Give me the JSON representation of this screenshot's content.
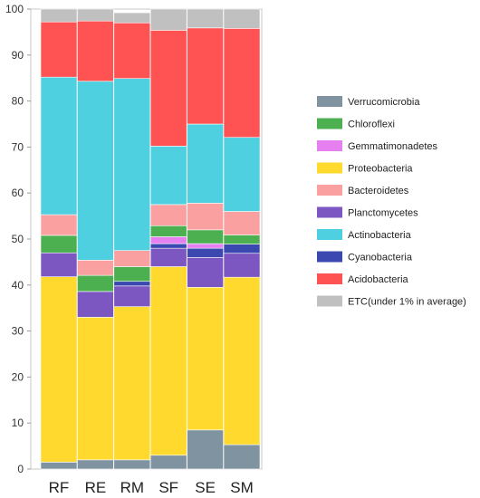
{
  "chart_data": {
    "type": "bar",
    "stacked": true,
    "categories": [
      "RF",
      "RE",
      "RM",
      "SF",
      "SE",
      "SM"
    ],
    "ylim": [
      0,
      100
    ],
    "yticks": [
      0,
      10,
      20,
      30,
      40,
      50,
      60,
      70,
      80,
      90,
      100
    ],
    "grid": false,
    "legend_position": "right",
    "series": [
      {
        "name": "Verrucomicrobia",
        "color": "#7F93A0",
        "values": [
          1.5,
          2.0,
          2.0,
          3.0,
          8.5,
          5.3
        ]
      },
      {
        "name": "Proteobacteria",
        "color": "#FFD92E",
        "values": [
          40.3,
          31.0,
          33.3,
          41.0,
          31.0,
          36.4
        ]
      },
      {
        "name": "Planctomycetes",
        "color": "#7C56C1",
        "values": [
          5.2,
          5.6,
          4.5,
          4.0,
          6.5,
          5.2
        ]
      },
      {
        "name": "Cyanobacteria",
        "color": "#3A48B0",
        "values": [
          0.0,
          0.0,
          1.0,
          1.0,
          2.0,
          2.0
        ]
      },
      {
        "name": "Gemmatimonadetes",
        "color": "#E67FF0",
        "values": [
          0.0,
          0.0,
          0.0,
          1.5,
          1.0,
          0.0
        ]
      },
      {
        "name": "Chloroflexi",
        "color": "#4CAF50",
        "values": [
          3.8,
          3.5,
          3.2,
          2.4,
          3.0,
          2.0
        ]
      },
      {
        "name": "Bacteroidetes",
        "color": "#FBA0A0",
        "values": [
          4.5,
          3.3,
          3.5,
          4.6,
          5.8,
          5.1
        ]
      },
      {
        "name": "Actinobacteria",
        "color": "#4FD0E0",
        "values": [
          29.9,
          38.9,
          37.4,
          12.7,
          17.2,
          16.1
        ]
      },
      {
        "name": "Acidobacteria",
        "color": "#FF5252",
        "values": [
          12.0,
          13.1,
          12.1,
          25.2,
          20.9,
          23.7
        ]
      },
      {
        "name": "ETC(under 1% in average)",
        "color": "#C0C0C0",
        "values": [
          2.8,
          2.6,
          2.2,
          4.6,
          4.1,
          4.2
        ]
      }
    ],
    "legend_order": [
      "Verrucomicrobia",
      "Chloroflexi",
      "Gemmatimonadetes",
      "Proteobacteria",
      "Bacteroidetes",
      "Planctomycetes",
      "Actinobacteria",
      "Cyanobacteria",
      "Acidobacteria",
      "ETC(under 1% in average)"
    ]
  }
}
